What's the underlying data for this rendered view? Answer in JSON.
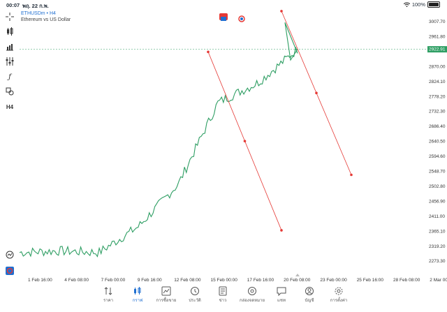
{
  "status_bar": {
    "time": "00:07",
    "date": "พฤ. 22 ก.พ.",
    "battery": "100%"
  },
  "symbol": {
    "name": "ETHUSDm • H4",
    "description": "Ethereum vs US Dollar"
  },
  "current_price": "2922.91",
  "price_axis": [
    "3007.70",
    "2961.80",
    "2870.00",
    "2824.10",
    "2778.20",
    "2732.30",
    "2686.40",
    "2640.50",
    "2594.60",
    "2548.70",
    "2502.80",
    "2456.90",
    "2411.00",
    "2365.10",
    "2319.20",
    "2273.30"
  ],
  "date_axis": [
    "1 Feb 16:00",
    "4 Feb 08:00",
    "7 Feb 00:00",
    "9 Feb 16:00",
    "12 Feb 08:00",
    "15 Feb 00:00",
    "17 Feb 16:00",
    "20 Feb 08:00",
    "23 Feb 00:00",
    "25 Feb 16:00",
    "28 Feb 08:00",
    "2 Mar 00:0"
  ],
  "toolbar_icons": [
    "crosshair-icon",
    "candles-icon",
    "bar-chart-icon",
    "indicators-icon",
    "function-icon",
    "objects-icon",
    "timeframe-icon"
  ],
  "timeframe": "H4",
  "nav": [
    {
      "label": "ราคา",
      "icon": "quotes-icon"
    },
    {
      "label": "กราฟ",
      "icon": "chart-icon",
      "active": true
    },
    {
      "label": "การซื้อขาย",
      "icon": "trade-icon"
    },
    {
      "label": "ประวัติ",
      "icon": "history-icon"
    },
    {
      "label": "ข่าว",
      "icon": "news-icon"
    },
    {
      "label": "กล่องจดหมาย",
      "icon": "mailbox-icon"
    },
    {
      "label": "แชท",
      "icon": "chat-icon"
    },
    {
      "label": "บัญชี",
      "icon": "account-icon"
    },
    {
      "label": "การตั้งค่า",
      "icon": "settings-icon"
    }
  ],
  "colors": {
    "line": "#2e9e63",
    "trend": "#e53935",
    "accent": "#1f6fd1",
    "price_tag": "#2e9e63"
  },
  "chart_data": {
    "type": "line",
    "title": "ETHUSDm • H4",
    "ylim": [
      2250,
      3030
    ],
    "x": [
      "1 Feb 16:00",
      "4 Feb 08:00",
      "7 Feb 00:00",
      "9 Feb 16:00",
      "12 Feb 08:00",
      "15 Feb 00:00",
      "17 Feb 16:00",
      "20 Feb 08:00"
    ],
    "close": [
      2300,
      2305,
      2300,
      2380,
      2510,
      2760,
      2820,
      2922.91
    ],
    "last_price": 2922.91,
    "trendlines": [
      {
        "x1": "14 Feb 00:00",
        "y1": 2915,
        "x2": "20 Feb 00:00",
        "y2": 2368
      },
      {
        "x1": "19 Feb 12:00",
        "y1": 3040,
        "x2": "24 Feb 20:00",
        "y2": 2538
      }
    ]
  }
}
